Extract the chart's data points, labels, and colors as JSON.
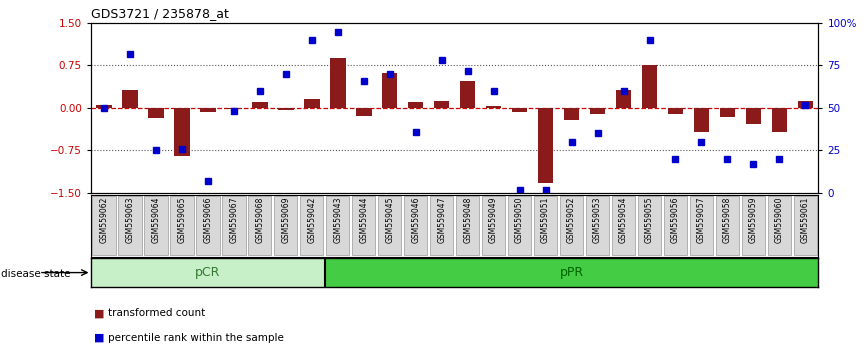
{
  "title": "GDS3721 / 235878_at",
  "samples": [
    "GSM559062",
    "GSM559063",
    "GSM559064",
    "GSM559065",
    "GSM559066",
    "GSM559067",
    "GSM559068",
    "GSM559069",
    "GSM559042",
    "GSM559043",
    "GSM559044",
    "GSM559045",
    "GSM559046",
    "GSM559047",
    "GSM559048",
    "GSM559049",
    "GSM559050",
    "GSM559051",
    "GSM559052",
    "GSM559053",
    "GSM559054",
    "GSM559055",
    "GSM559056",
    "GSM559057",
    "GSM559058",
    "GSM559059",
    "GSM559060",
    "GSM559061"
  ],
  "transformed_count": [
    0.05,
    0.32,
    -0.18,
    -0.85,
    -0.07,
    -0.02,
    0.1,
    -0.04,
    0.15,
    0.88,
    -0.15,
    0.62,
    0.1,
    0.13,
    0.48,
    0.03,
    -0.07,
    -1.32,
    -0.22,
    -0.1,
    0.32,
    0.75,
    -0.1,
    -0.42,
    -0.16,
    -0.28,
    -0.42,
    0.13
  ],
  "percentile_rank": [
    50,
    82,
    25,
    26,
    7,
    48,
    60,
    70,
    90,
    95,
    66,
    70,
    36,
    78,
    72,
    60,
    2,
    2,
    30,
    35,
    60,
    90,
    20,
    30,
    20,
    17,
    20,
    52
  ],
  "pCR_count": 9,
  "pPR_count": 19,
  "ylim": [
    -1.5,
    1.5
  ],
  "yticks_left": [
    -1.5,
    -0.75,
    0.0,
    0.75,
    1.5
  ],
  "yticks_right": [
    0,
    25,
    50,
    75,
    100
  ],
  "bar_color": "#8B1A1A",
  "dot_color": "#0000CC",
  "pCR_color": "#C8F0C8",
  "pPR_color": "#44CC44",
  "hline_color": "#CC0000",
  "dotted_color": "#555555",
  "ticklabel_bg": "#D0D0D0",
  "ticklabel_border": "#888888"
}
